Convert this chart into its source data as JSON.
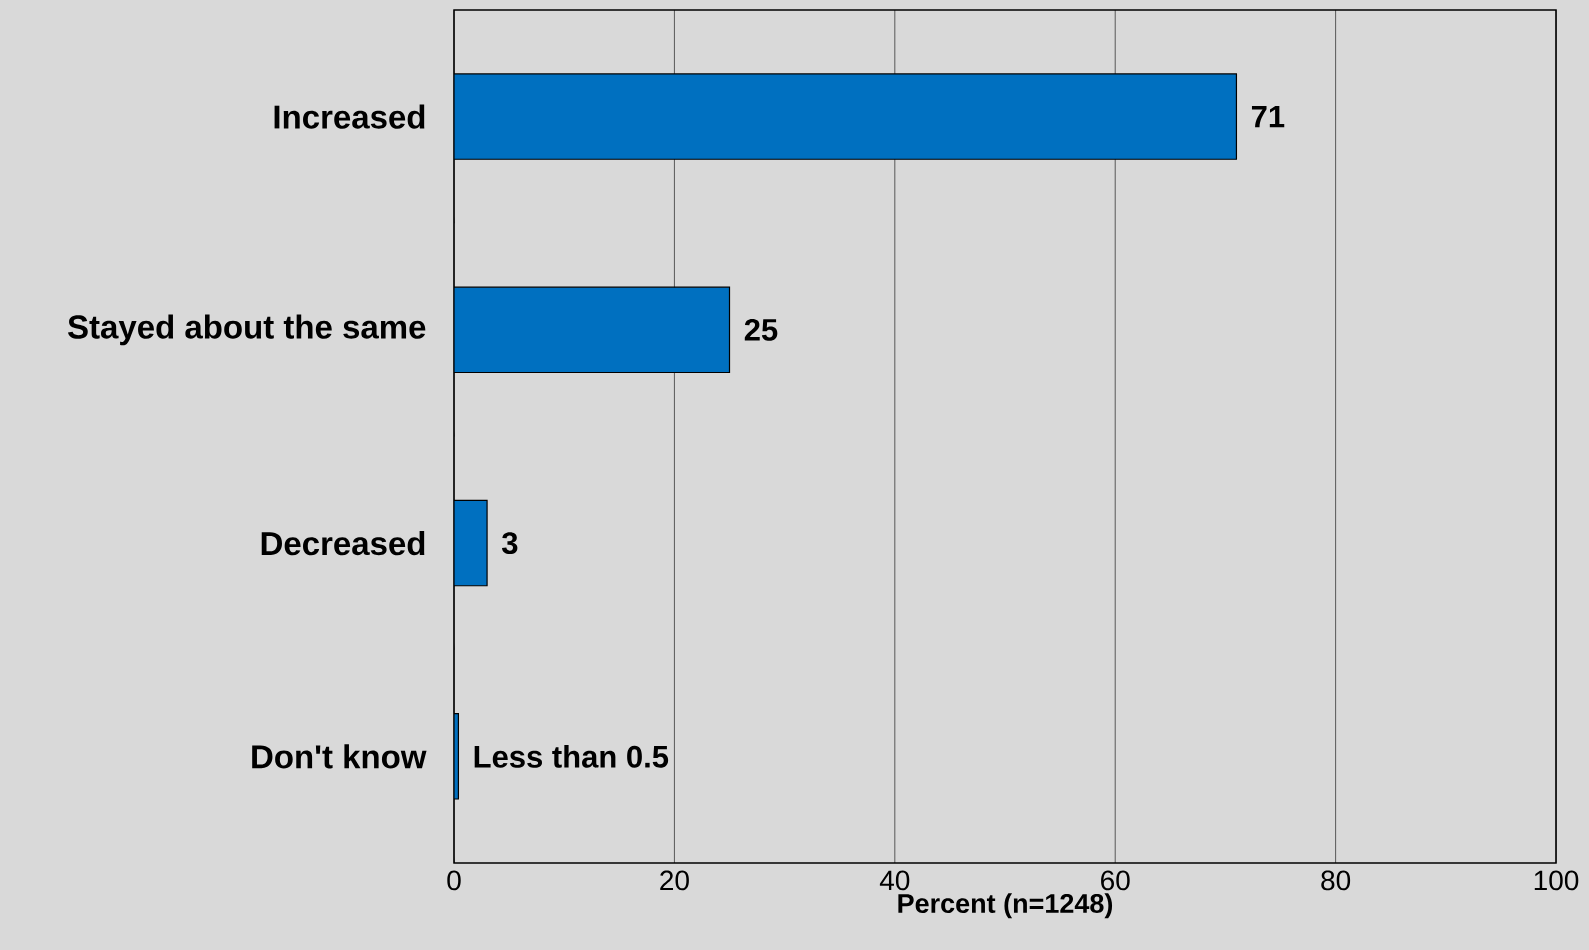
{
  "chart_data": {
    "type": "bar",
    "orientation": "horizontal",
    "categories": [
      "Increased",
      "Stayed about the same",
      "Decreased",
      "Don't know"
    ],
    "values": [
      71,
      25,
      3,
      0.4
    ],
    "value_labels": [
      "71",
      "25",
      "3",
      "Less than 0.5"
    ],
    "color": "#0070c0",
    "xlabel": "Percent (n=1248)",
    "xlim": [
      0,
      100
    ],
    "xticks": [
      0,
      20,
      40,
      60,
      80,
      100
    ],
    "grid": "x"
  }
}
